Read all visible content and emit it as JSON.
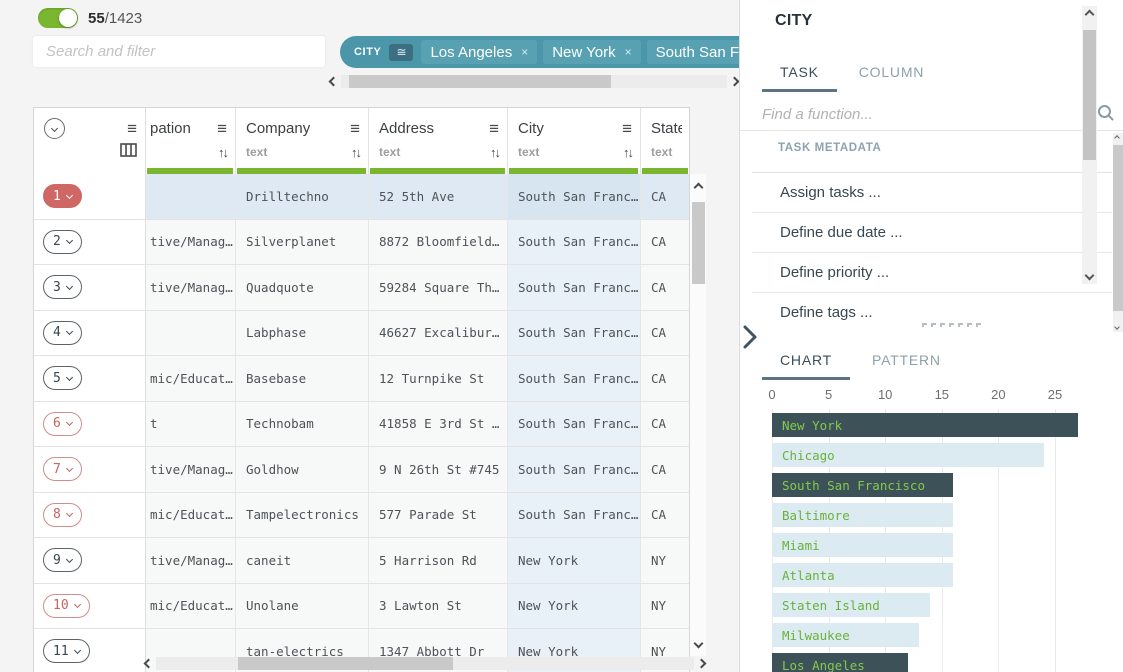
{
  "toolbar": {
    "row_fraction": {
      "selected": "55",
      "divider": "/",
      "total": "1423"
    },
    "search_placeholder": "Search and filter"
  },
  "filter": {
    "column_label": "CITY",
    "operator_icon": "≅",
    "chips": [
      "Los Angeles",
      "New York",
      "South San Fr"
    ],
    "remove_icon": "×"
  },
  "table": {
    "columns": [
      {
        "name": "pation",
        "type": "",
        "menu": true,
        "sort": true
      },
      {
        "name": "Company",
        "type": "text",
        "menu": true,
        "sort": true
      },
      {
        "name": "Address",
        "type": "text",
        "menu": true,
        "sort": true
      },
      {
        "name": "City",
        "type": "text",
        "menu": true,
        "sort": true
      },
      {
        "name": "State",
        "type": "text",
        "menu": false,
        "sort": false
      }
    ],
    "rows": [
      {
        "num": "1",
        "style": "selected",
        "cells": [
          "",
          "Drilltechno",
          "52 5th Ave",
          "South San Franc…",
          "CA"
        ]
      },
      {
        "num": "2",
        "style": "normal",
        "cells": [
          "tive/Manag…",
          "Silverplanet",
          "8872 Bloomfield…",
          "South San Franc…",
          "CA"
        ]
      },
      {
        "num": "3",
        "style": "normal",
        "cells": [
          "tive/Manag…",
          "Quadquote",
          "59284 Square Th…",
          "South San Franc…",
          "CA"
        ]
      },
      {
        "num": "4",
        "style": "normal",
        "cells": [
          "",
          "Labphase",
          "46627 Excalibur…",
          "South San Franc…",
          "CA"
        ]
      },
      {
        "num": "5",
        "style": "normal",
        "cells": [
          "mic/Educat…",
          "Basebase",
          "12 Turnpike St",
          "South San Franc…",
          "CA"
        ]
      },
      {
        "num": "6",
        "style": "flagged",
        "cells": [
          "t",
          "Technobam",
          "41858 E 3rd St …",
          "South San Franc…",
          "CA"
        ]
      },
      {
        "num": "7",
        "style": "flagged",
        "cells": [
          "tive/Manag…",
          "Goldhow",
          "9 N 26th St #745",
          "South San Franc…",
          "CA"
        ]
      },
      {
        "num": "8",
        "style": "flagged",
        "cells": [
          "mic/Educat…",
          "Tampelectronics",
          "577 Parade St",
          "South San Franc…",
          "CA"
        ]
      },
      {
        "num": "9",
        "style": "normal",
        "cells": [
          "tive/Manag…",
          "caneit",
          "5 Harrison Rd",
          "New York",
          "NY"
        ]
      },
      {
        "num": "10",
        "style": "flagged",
        "cells": [
          "mic/Educat…",
          "Unolane",
          "3 Lawton St",
          "New York",
          "NY"
        ]
      },
      {
        "num": "11",
        "style": "normal",
        "cells": [
          "",
          "tan-electrics",
          "1347 Abbott Dr",
          "New York",
          "NY"
        ]
      }
    ]
  },
  "panel": {
    "title": "CITY",
    "tabs": [
      {
        "label": "TASK",
        "active": true
      },
      {
        "label": "COLUMN",
        "active": false
      }
    ],
    "function_search_placeholder": "Find a function...",
    "section_title": "TASK METADATA",
    "items": [
      "Assign tasks ...",
      "Define due date ...",
      "Define priority ...",
      "Define tags ..."
    ],
    "bottom_tabs": [
      {
        "label": "CHART",
        "active": true
      },
      {
        "label": "PATTERN",
        "active": false
      }
    ]
  },
  "chart_data": {
    "type": "bar",
    "orientation": "horizontal",
    "categories": [
      "New York",
      "Chicago",
      "South San Francisco",
      "Baltimore",
      "Miami",
      "Atlanta",
      "Staten Island",
      "Milwaukee",
      "Los Angeles"
    ],
    "values": [
      27,
      24,
      16,
      16,
      16,
      16,
      14,
      13,
      12
    ],
    "selected": [
      true,
      false,
      true,
      false,
      false,
      false,
      false,
      false,
      true
    ],
    "x_ticks": [
      0,
      5,
      10,
      15,
      20,
      25
    ],
    "xlim": [
      0,
      27.5
    ],
    "grid": true,
    "title": "",
    "xlabel": "",
    "ylabel": ""
  },
  "colors": {
    "accent_green": "#7ab62f",
    "filter_teal": "#4b96a9",
    "selected_red": "#cf6765",
    "bar_dark": "#3d5159",
    "bar_light": "#dcebf2",
    "bar_label_green": "#68b23a",
    "highlight_blue": "#e9f1f8"
  }
}
